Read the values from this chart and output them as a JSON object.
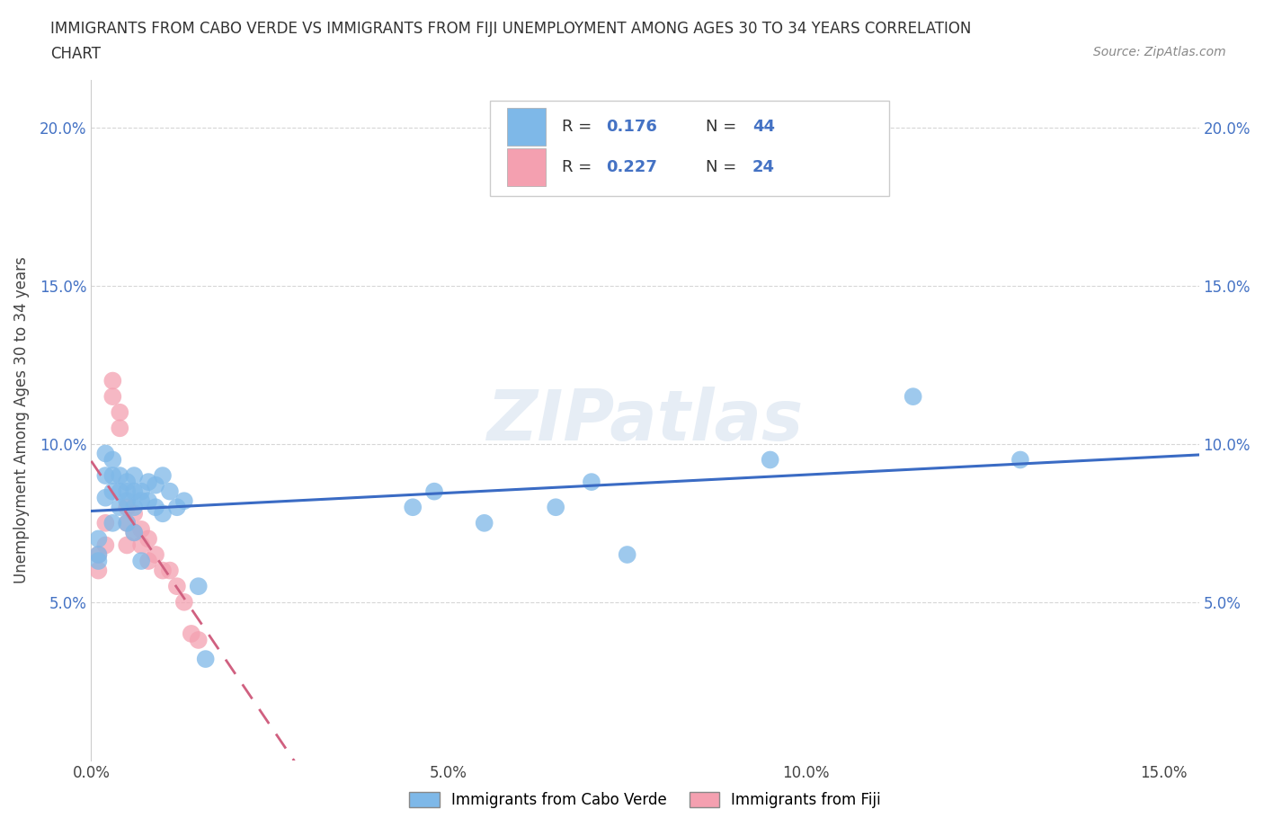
{
  "title_line1": "IMMIGRANTS FROM CABO VERDE VS IMMIGRANTS FROM FIJI UNEMPLOYMENT AMONG AGES 30 TO 34 YEARS CORRELATION",
  "title_line2": "CHART",
  "source_text": "Source: ZipAtlas.com",
  "ylabel": "Unemployment Among Ages 30 to 34 years",
  "xlim": [
    0.0,
    0.155
  ],
  "ylim": [
    0.0,
    0.215
  ],
  "xticks": [
    0.0,
    0.05,
    0.1,
    0.15
  ],
  "yticks": [
    0.05,
    0.1,
    0.15,
    0.2
  ],
  "xtick_labels": [
    "0.0%",
    "5.0%",
    "10.0%",
    "15.0%"
  ],
  "ytick_labels": [
    "5.0%",
    "10.0%",
    "15.0%",
    "20.0%"
  ],
  "cabo_verde_color": "#7eb8e8",
  "fiji_color": "#f4a0b0",
  "cabo_verde_line_color": "#3a6bc4",
  "fiji_line_color": "#d06080",
  "background_color": "#ffffff",
  "grid_color": "#cccccc",
  "watermark": "ZIPatlas",
  "legend_label_cabo": "Immigrants from Cabo Verde",
  "legend_label_fiji": "Immigrants from Fiji",
  "cabo_verde_x": [
    0.001,
    0.001,
    0.001,
    0.002,
    0.002,
    0.002,
    0.003,
    0.003,
    0.003,
    0.003,
    0.004,
    0.004,
    0.004,
    0.005,
    0.005,
    0.005,
    0.005,
    0.006,
    0.006,
    0.006,
    0.006,
    0.007,
    0.007,
    0.007,
    0.008,
    0.008,
    0.009,
    0.009,
    0.01,
    0.01,
    0.011,
    0.012,
    0.013,
    0.015,
    0.016,
    0.045,
    0.048,
    0.055,
    0.065,
    0.07,
    0.075,
    0.095,
    0.115,
    0.13
  ],
  "cabo_verde_y": [
    0.065,
    0.07,
    0.063,
    0.097,
    0.09,
    0.083,
    0.095,
    0.09,
    0.085,
    0.075,
    0.09,
    0.085,
    0.08,
    0.088,
    0.085,
    0.082,
    0.075,
    0.09,
    0.085,
    0.08,
    0.072,
    0.085,
    0.082,
    0.063,
    0.088,
    0.082,
    0.087,
    0.08,
    0.09,
    0.078,
    0.085,
    0.08,
    0.082,
    0.055,
    0.032,
    0.08,
    0.085,
    0.075,
    0.08,
    0.088,
    0.065,
    0.095,
    0.115,
    0.095
  ],
  "fiji_x": [
    0.001,
    0.001,
    0.002,
    0.002,
    0.003,
    0.003,
    0.004,
    0.004,
    0.005,
    0.005,
    0.005,
    0.006,
    0.006,
    0.007,
    0.007,
    0.008,
    0.008,
    0.009,
    0.01,
    0.011,
    0.012,
    0.013,
    0.014,
    0.015
  ],
  "fiji_y": [
    0.065,
    0.06,
    0.075,
    0.068,
    0.12,
    0.115,
    0.11,
    0.105,
    0.08,
    0.075,
    0.068,
    0.078,
    0.072,
    0.073,
    0.068,
    0.07,
    0.063,
    0.065,
    0.06,
    0.06,
    0.055,
    0.05,
    0.04,
    0.038
  ]
}
